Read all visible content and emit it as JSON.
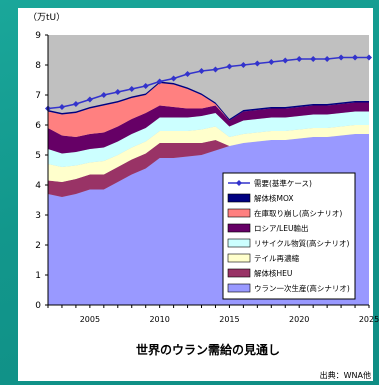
{
  "chart_data": {
    "type": "area",
    "title": "世界のウラン需給の見通し",
    "source": "出典：WNA他",
    "y_unit": "（万tU）",
    "x_ticks": [
      "2005",
      "2010",
      "2015",
      "2020",
      "2025"
    ],
    "y_ticks": [
      "0",
      "1",
      "2",
      "3",
      "4",
      "5",
      "6",
      "7",
      "8",
      "9"
    ],
    "xlim": [
      2002,
      2025
    ],
    "ylim": [
      0,
      9
    ],
    "x": [
      2002,
      2003,
      2004,
      2005,
      2006,
      2007,
      2008,
      2009,
      2010,
      2011,
      2012,
      2013,
      2014,
      2015,
      2016,
      2017,
      2018,
      2019,
      2020,
      2021,
      2022,
      2023,
      2024,
      2025
    ],
    "series": [
      {
        "name": "ウラン一次生産(高シナリオ)",
        "color": "#9999ff",
        "values": [
          3.7,
          3.6,
          3.7,
          3.85,
          3.85,
          4.1,
          4.35,
          4.55,
          4.9,
          4.9,
          4.95,
          5.0,
          5.15,
          5.3,
          5.4,
          5.45,
          5.5,
          5.5,
          5.55,
          5.6,
          5.6,
          5.65,
          5.7,
          5.7
        ]
      },
      {
        "name": "解体核HEU",
        "color": "#993366",
        "values": [
          0.45,
          0.5,
          0.5,
          0.5,
          0.5,
          0.5,
          0.5,
          0.5,
          0.5,
          0.5,
          0.45,
          0.4,
          0.35,
          0,
          0,
          0,
          0,
          0,
          0,
          0,
          0,
          0,
          0,
          0
        ]
      },
      {
        "name": "テイル再濃縮",
        "color": "#ffffcc",
        "values": [
          0.55,
          0.5,
          0.45,
          0.4,
          0.45,
          0.4,
          0.4,
          0.4,
          0.4,
          0.4,
          0.4,
          0.45,
          0.45,
          0.3,
          0.3,
          0.3,
          0.3,
          0.3,
          0.3,
          0.3,
          0.3,
          0.3,
          0.3,
          0.3
        ]
      },
      {
        "name": "リサイクル物質(高シナリオ)",
        "color": "#ccffff",
        "values": [
          0.5,
          0.45,
          0.45,
          0.45,
          0.45,
          0.45,
          0.45,
          0.45,
          0.45,
          0.45,
          0.45,
          0.45,
          0.45,
          0.35,
          0.45,
          0.45,
          0.45,
          0.45,
          0.45,
          0.45,
          0.45,
          0.45,
          0.45,
          0.45
        ]
      },
      {
        "name": "ロシア/LEU輸出",
        "color": "#660066",
        "values": [
          0.7,
          0.6,
          0.5,
          0.5,
          0.5,
          0.5,
          0.5,
          0.5,
          0.4,
          0.35,
          0.3,
          0.25,
          0.25,
          0.2,
          0.3,
          0.3,
          0.3,
          0.3,
          0.3,
          0.3,
          0.3,
          0.3,
          0.3,
          0.3
        ]
      },
      {
        "name": "在庫取り崩し(高シナリオ)",
        "color": "#ff8080",
        "values": [
          0.55,
          0.7,
          0.8,
          0.85,
          0.9,
          0.8,
          0.7,
          0.6,
          0.75,
          0.75,
          0.65,
          0.45,
          0.05,
          0,
          0,
          0,
          0,
          0,
          0,
          0,
          0,
          0,
          0,
          0
        ]
      },
      {
        "name": "解体核MOX",
        "color": "#000080",
        "values": [
          0.05,
          0.05,
          0.05,
          0.05,
          0.05,
          0.05,
          0.05,
          0.05,
          0.05,
          0.05,
          0.05,
          0.05,
          0.05,
          0.05,
          0.05,
          0.05,
          0.05,
          0.05,
          0.05,
          0.05,
          0.05,
          0.05,
          0.05,
          0.05
        ]
      }
    ],
    "demand": {
      "name": "需要(基準ケース)",
      "color": "#3333cc",
      "values": [
        6.55,
        6.6,
        6.7,
        6.85,
        7.0,
        7.1,
        7.2,
        7.3,
        7.45,
        7.55,
        7.7,
        7.8,
        7.85,
        7.95,
        8.0,
        8.05,
        8.1,
        8.15,
        8.2,
        8.2,
        8.2,
        8.25,
        8.25,
        8.25
      ]
    },
    "plot_background": "#c0c0c0",
    "legend": {
      "position": "lower-right",
      "order": [
        "需要(基準ケース)",
        "解体核MOX",
        "在庫取り崩し(高シナリオ)",
        "ロシア/LEU輸出",
        "リサイクル物質(高シナリオ)",
        "テイル再濃縮",
        "解体核HEU",
        "ウラン一次生産(高シナリオ)"
      ]
    }
  }
}
